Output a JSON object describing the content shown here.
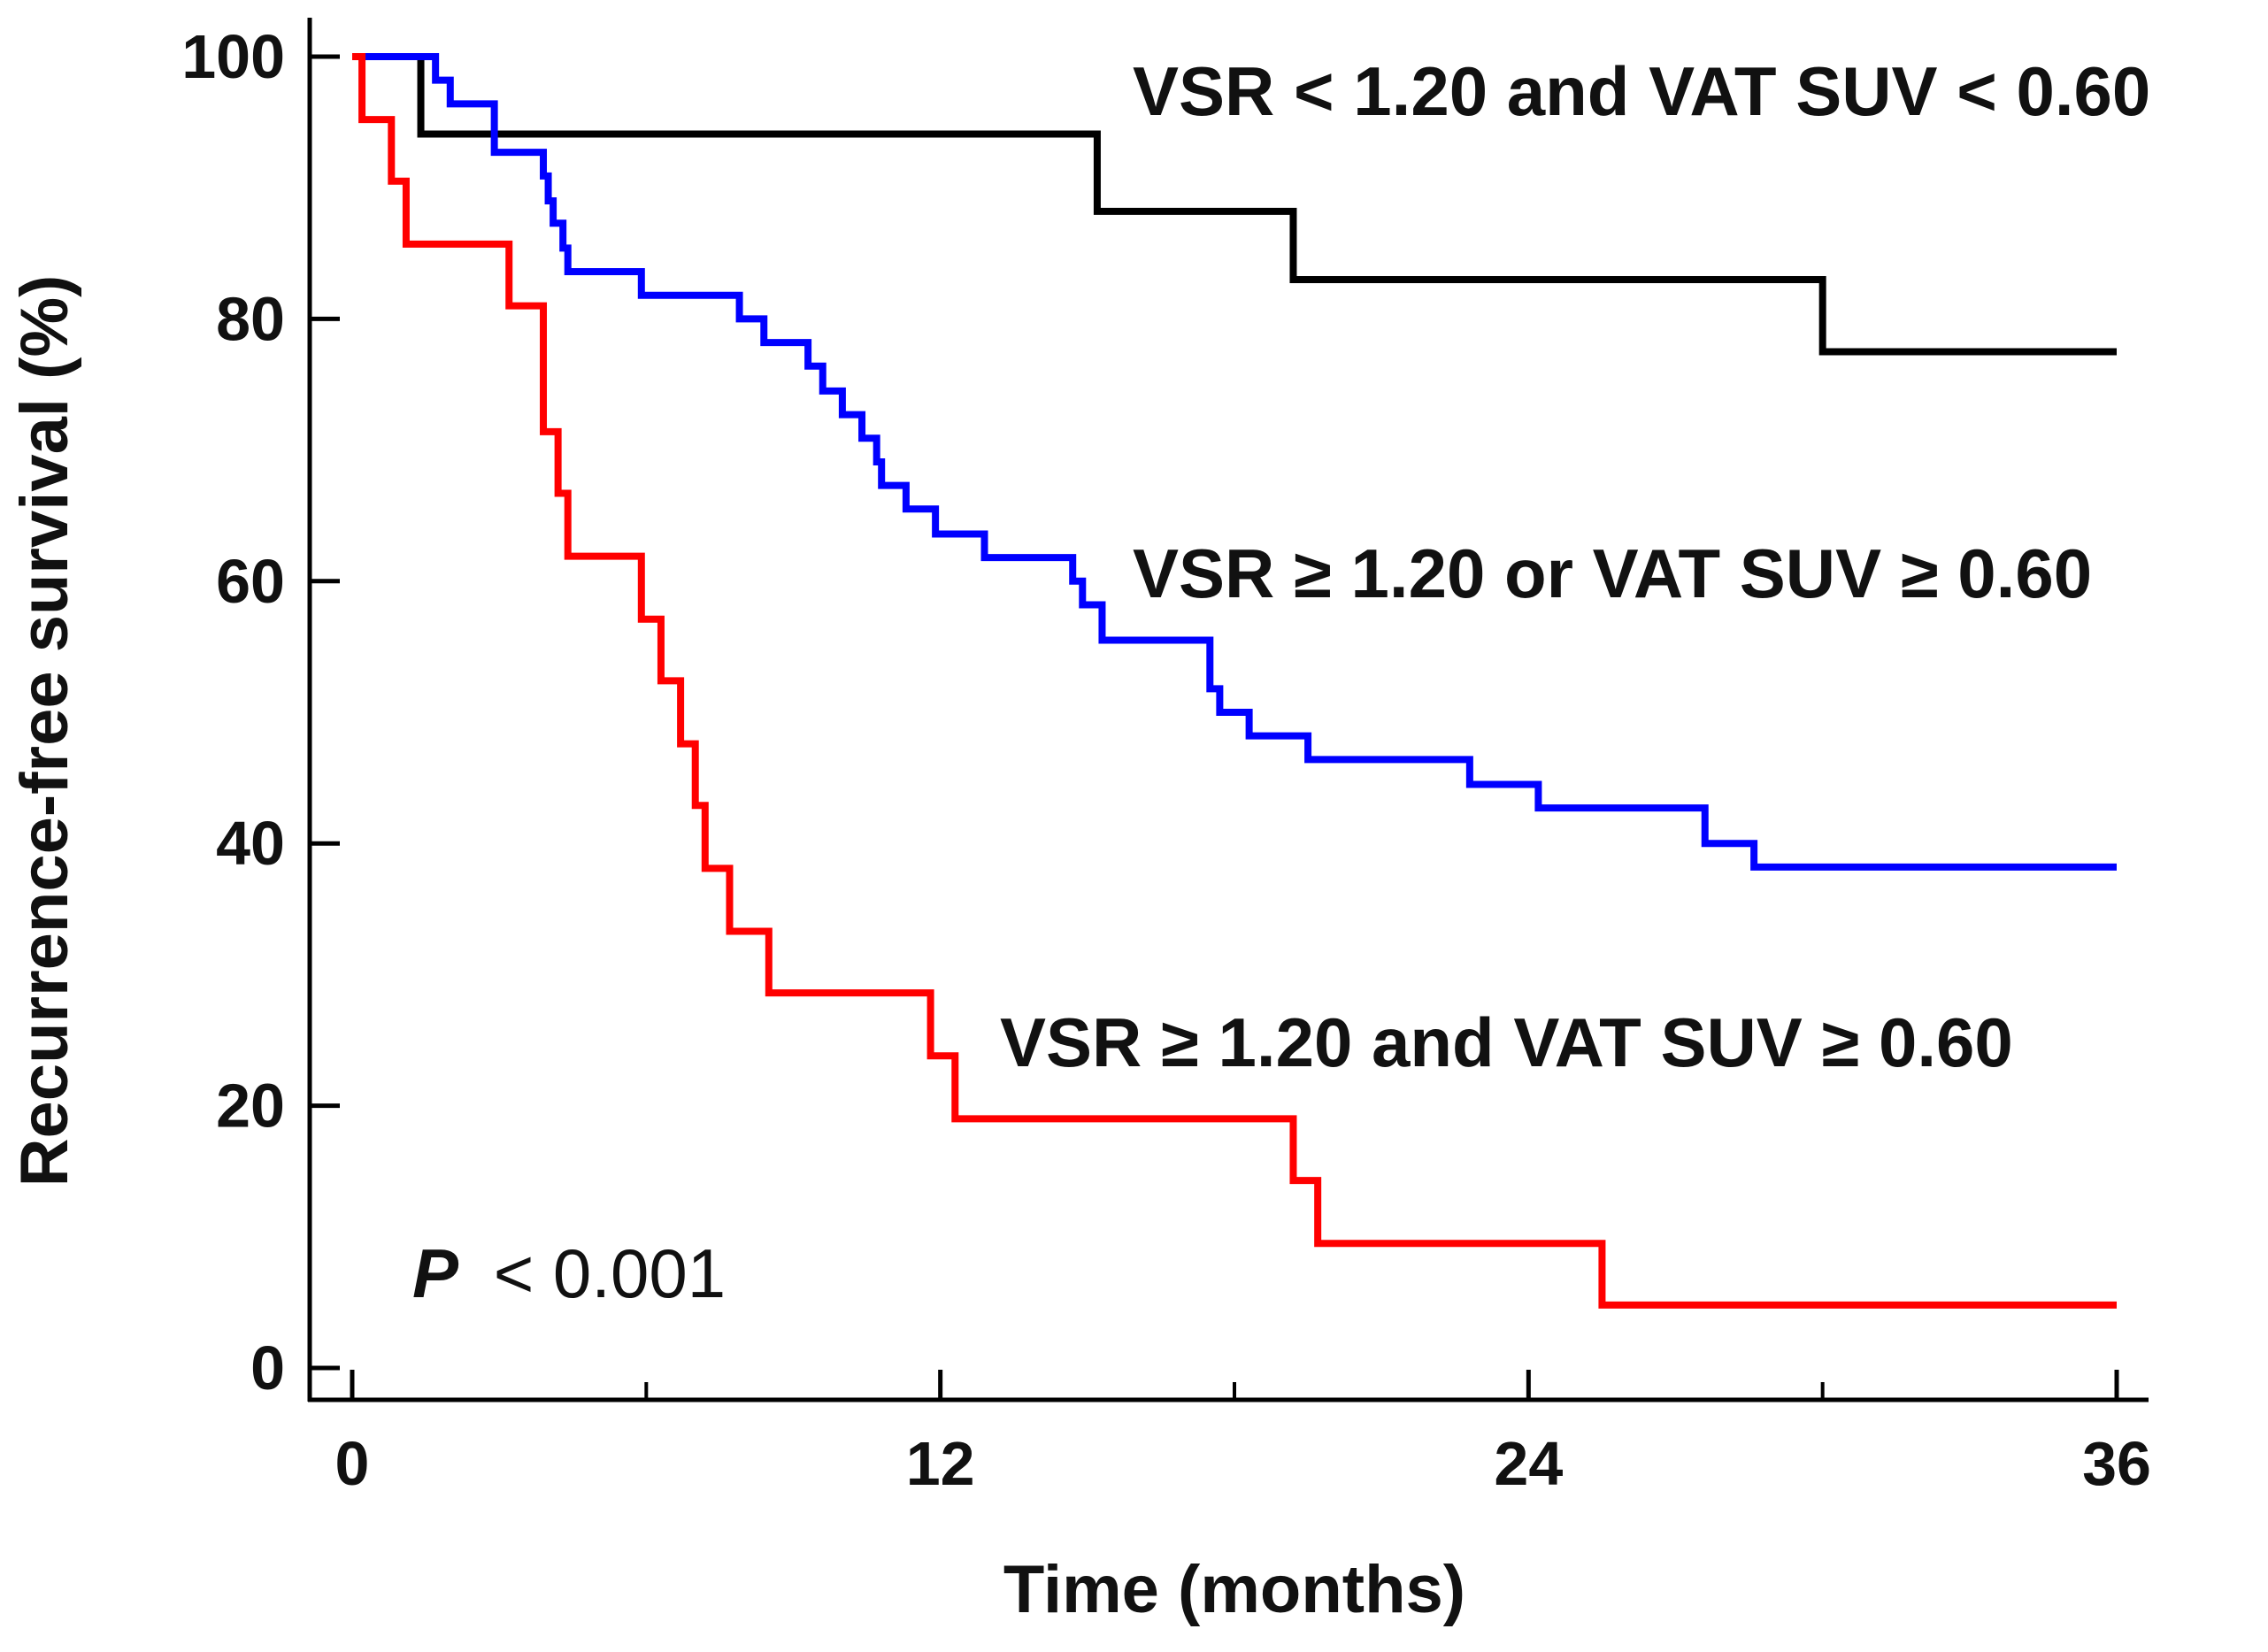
{
  "chart_data": {
    "type": "line",
    "step": true,
    "xlabel": "Time (months)",
    "ylabel": "Recurrence-free survival (%)",
    "xlim": [
      0,
      37
    ],
    "ylim": [
      0,
      101
    ],
    "xticks": [
      0,
      12,
      24,
      36
    ],
    "xminor": [
      6,
      18,
      30
    ],
    "yticks": [
      0,
      20,
      40,
      60,
      80,
      100
    ],
    "p_value": {
      "symbol": "P",
      "text": "< 0.001"
    },
    "series": [
      {
        "name": "VSR < 1.20 and VAT SUV < 0.60",
        "color": "#000000",
        "x": [
          0,
          1.4,
          15.2,
          19.2,
          30.0,
          36
        ],
        "y": [
          100,
          94.1,
          88.2,
          83.0,
          77.5,
          77.5
        ]
      },
      {
        "name": "VSR ≥ 1.20 or VAT SUV ≥ 0.60",
        "color": "#0000ff",
        "x": [
          0,
          1.7,
          2.0,
          2.9,
          3.9,
          4.0,
          4.1,
          4.3,
          4.4,
          4.5,
          4.6,
          5.9,
          7.9,
          8.4,
          9.3,
          9.6,
          10.0,
          10.4,
          10.7,
          10.8,
          11.3,
          11.9,
          12.9,
          14.7,
          14.9,
          15.3,
          17.5,
          17.7,
          18.3,
          19.5,
          22.8,
          24.2,
          27.6,
          28.6,
          36
        ],
        "y": [
          100,
          98.2,
          96.4,
          92.7,
          90.9,
          89.0,
          87.3,
          85.4,
          83.6,
          83.6,
          83.6,
          81.8,
          80.0,
          78.2,
          76.4,
          74.5,
          72.7,
          70.9,
          69.1,
          67.3,
          65.5,
          63.6,
          61.8,
          60.0,
          58.2,
          55.5,
          51.8,
          50.0,
          48.2,
          46.4,
          44.5,
          42.7,
          40.0,
          38.2,
          38.2
        ]
      },
      {
        "name": "VSR ≥ 1.20 and VAT SUV ≥ 0.60",
        "color": "#ff0000",
        "x": [
          0,
          0.2,
          0.8,
          1.1,
          3.2,
          3.9,
          4.2,
          4.4,
          4.7,
          5.9,
          6.3,
          6.7,
          7.0,
          7.2,
          7.7,
          8.5,
          11.8,
          12.3,
          19.2,
          19.4,
          19.7,
          25.5,
          36
        ],
        "y": [
          100,
          95.2,
          90.5,
          85.7,
          81.0,
          71.4,
          66.7,
          61.9,
          61.9,
          57.1,
          52.4,
          47.6,
          42.9,
          38.1,
          33.3,
          28.6,
          23.8,
          19.0,
          14.3,
          14.3,
          9.5,
          4.8,
          4.8
        ]
      }
    ]
  }
}
